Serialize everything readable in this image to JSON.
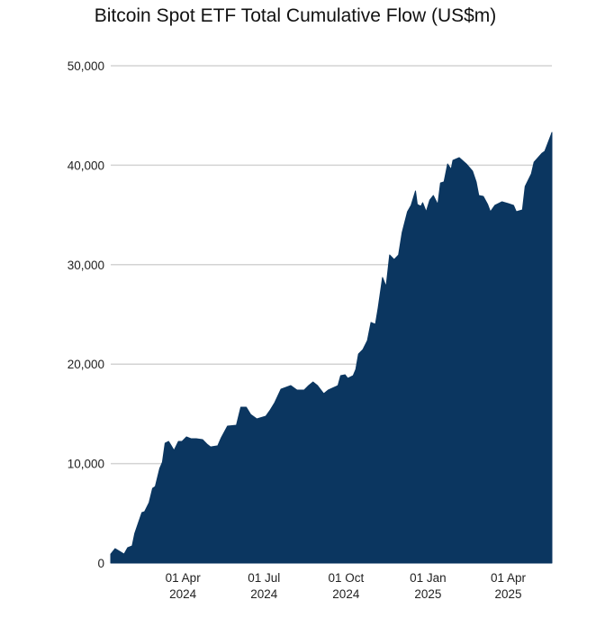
{
  "chart_data": {
    "type": "area",
    "title": "Bitcoin Spot ETF Total Cumulative Flow (US$m)",
    "xlabel": "",
    "ylabel": "",
    "ylim": [
      0,
      50000
    ],
    "xlim": [
      "2024-01-11",
      "2025-05-20"
    ],
    "grid": true,
    "color": "#0b3660",
    "yticks": [
      0,
      10000,
      20000,
      30000,
      40000,
      50000
    ],
    "ytick_labels": [
      "0",
      "10,000",
      "20,000",
      "30,000",
      "40,000",
      "50,000"
    ],
    "xticks": [
      {
        "date": "2024-04-01",
        "line1": "01 Apr",
        "line2": "2024"
      },
      {
        "date": "2024-07-01",
        "line1": "01 Jul",
        "line2": "2024"
      },
      {
        "date": "2024-10-01",
        "line1": "01 Oct",
        "line2": "2024"
      },
      {
        "date": "2025-01-01",
        "line1": "01 Jan",
        "line2": "2025"
      },
      {
        "date": "2025-04-01",
        "line1": "01 Apr",
        "line2": "2025"
      }
    ],
    "points": [
      [
        "2024-01-11",
        900
      ],
      [
        "2024-01-16",
        1450
      ],
      [
        "2024-01-21",
        1180
      ],
      [
        "2024-01-26",
        900
      ],
      [
        "2024-01-30",
        1540
      ],
      [
        "2024-02-04",
        1720
      ],
      [
        "2024-02-07",
        2990
      ],
      [
        "2024-02-15",
        5070
      ],
      [
        "2024-02-18",
        5160
      ],
      [
        "2024-02-23",
        6070
      ],
      [
        "2024-02-27",
        7520
      ],
      [
        "2024-03-01",
        7700
      ],
      [
        "2024-03-06",
        9510
      ],
      [
        "2024-03-09",
        10140
      ],
      [
        "2024-03-12",
        12050
      ],
      [
        "2024-03-16",
        12230
      ],
      [
        "2024-03-19",
        11780
      ],
      [
        "2024-03-22",
        11320
      ],
      [
        "2024-03-27",
        12230
      ],
      [
        "2024-03-31",
        12230
      ],
      [
        "2024-04-05",
        12680
      ],
      [
        "2024-04-10",
        12500
      ],
      [
        "2024-04-16",
        12500
      ],
      [
        "2024-04-23",
        12410
      ],
      [
        "2024-04-28",
        11960
      ],
      [
        "2024-05-02",
        11680
      ],
      [
        "2024-05-10",
        11780
      ],
      [
        "2024-05-14",
        12590
      ],
      [
        "2024-05-21",
        13770
      ],
      [
        "2024-05-31",
        13860
      ],
      [
        "2024-06-05",
        15670
      ],
      [
        "2024-06-11",
        15670
      ],
      [
        "2024-06-16",
        14950
      ],
      [
        "2024-06-23",
        14490
      ],
      [
        "2024-07-03",
        14760
      ],
      [
        "2024-07-08",
        15400
      ],
      [
        "2024-07-13",
        16120
      ],
      [
        "2024-07-20",
        17480
      ],
      [
        "2024-07-31",
        17840
      ],
      [
        "2024-08-07",
        17390
      ],
      [
        "2024-08-15",
        17390
      ],
      [
        "2024-08-20",
        17840
      ],
      [
        "2024-08-25",
        18210
      ],
      [
        "2024-08-30",
        17840
      ],
      [
        "2024-09-06",
        17030
      ],
      [
        "2024-09-11",
        17390
      ],
      [
        "2024-09-20",
        17750
      ],
      [
        "2024-09-22",
        17840
      ],
      [
        "2024-09-25",
        18840
      ],
      [
        "2024-09-30",
        18930
      ],
      [
        "2024-10-03",
        18570
      ],
      [
        "2024-10-09",
        18840
      ],
      [
        "2024-10-12",
        19470
      ],
      [
        "2024-10-15",
        21010
      ],
      [
        "2024-10-20",
        21470
      ],
      [
        "2024-10-25",
        22370
      ],
      [
        "2024-10-29",
        24190
      ],
      [
        "2024-11-03",
        24000
      ],
      [
        "2024-11-06",
        25630
      ],
      [
        "2024-11-11",
        28710
      ],
      [
        "2024-11-15",
        27810
      ],
      [
        "2024-11-19",
        30980
      ],
      [
        "2024-11-24",
        30520
      ],
      [
        "2024-11-29",
        30980
      ],
      [
        "2024-12-03",
        33240
      ],
      [
        "2024-12-09",
        35330
      ],
      [
        "2024-12-13",
        35960
      ],
      [
        "2024-12-18",
        37410
      ],
      [
        "2024-12-20",
        36050
      ],
      [
        "2024-12-24",
        35870
      ],
      [
        "2024-12-26",
        36230
      ],
      [
        "2024-12-30",
        35330
      ],
      [
        "2025-01-03",
        36500
      ],
      [
        "2025-01-07",
        36960
      ],
      [
        "2025-01-12",
        36050
      ],
      [
        "2025-01-15",
        38220
      ],
      [
        "2025-01-19",
        38320
      ],
      [
        "2025-01-23",
        40130
      ],
      [
        "2025-01-27",
        39580
      ],
      [
        "2025-01-29",
        40490
      ],
      [
        "2025-02-05",
        40760
      ],
      [
        "2025-02-13",
        40130
      ],
      [
        "2025-02-20",
        39400
      ],
      [
        "2025-02-24",
        38320
      ],
      [
        "2025-02-27",
        36960
      ],
      [
        "2025-03-04",
        36870
      ],
      [
        "2025-03-09",
        36050
      ],
      [
        "2025-03-12",
        35330
      ],
      [
        "2025-03-17",
        35960
      ],
      [
        "2025-03-25",
        36320
      ],
      [
        "2025-04-01",
        36140
      ],
      [
        "2025-04-07",
        35960
      ],
      [
        "2025-04-10",
        35330
      ],
      [
        "2025-04-17",
        35510
      ],
      [
        "2025-04-20",
        37860
      ],
      [
        "2025-04-27",
        39130
      ],
      [
        "2025-04-30",
        40310
      ],
      [
        "2025-05-09",
        41210
      ],
      [
        "2025-05-12",
        41400
      ],
      [
        "2025-05-19",
        43030
      ],
      [
        "2025-05-20",
        43300
      ]
    ]
  }
}
